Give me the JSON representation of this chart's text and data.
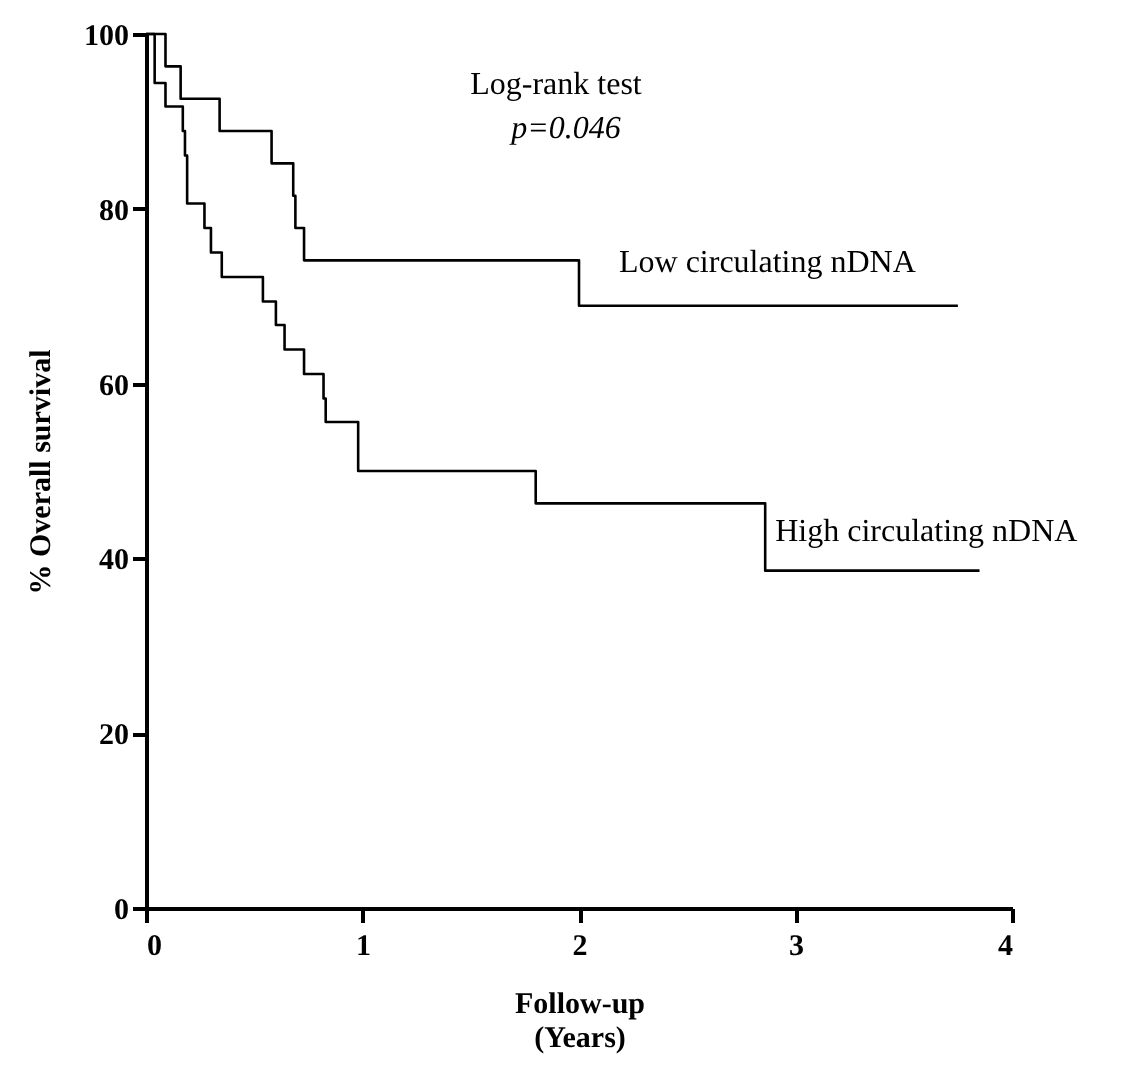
{
  "chart_data": {
    "type": "step",
    "xlabel": "Follow-up\n(Years)",
    "ylabel": "% Overall survival",
    "annotations": [
      "Log-rank test",
      "p=0.046"
    ],
    "xlim": [
      0,
      4
    ],
    "ylim": [
      0,
      100
    ],
    "xticks": [
      0,
      1,
      2,
      3,
      4
    ],
    "yticks": [
      0,
      20,
      40,
      60,
      80,
      100
    ],
    "grid": false,
    "marker": "none",
    "line_style": "solid",
    "series": [
      {
        "name": "Low circulating nDNA",
        "color": "#000000",
        "x": [
          0,
          0.09,
          0.16,
          0.34,
          0.58,
          0.68,
          0.69,
          0.73,
          2.0,
          3.75
        ],
        "values": [
          100,
          96.3,
          92.6,
          88.9,
          85.2,
          81.5,
          77.8,
          74.1,
          68.9,
          68.9
        ]
      },
      {
        "name": "High circulating nDNA",
        "color": "#000000",
        "x": [
          0,
          0.04,
          0.09,
          0.17,
          0.18,
          0.19,
          0.27,
          0.3,
          0.35,
          0.54,
          0.6,
          0.64,
          0.73,
          0.82,
          0.83,
          0.98,
          1.8,
          2.86,
          3.85
        ],
        "values": [
          100,
          94.4,
          91.7,
          88.9,
          86.1,
          80.6,
          77.8,
          75.0,
          72.2,
          69.4,
          66.7,
          63.9,
          61.1,
          58.3,
          55.6,
          50.0,
          46.3,
          38.6,
          38.6
        ]
      }
    ]
  }
}
